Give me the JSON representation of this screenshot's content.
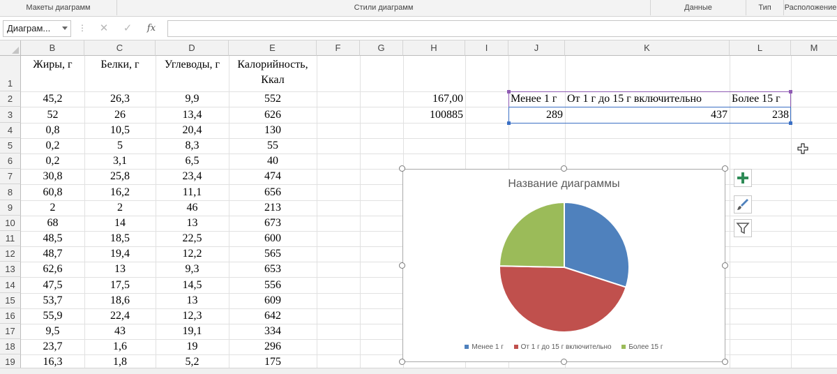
{
  "ribbon": {
    "groups": [
      "Макеты диаграмм",
      "Стили диаграмм",
      "Данные",
      "Тип",
      "Расположение"
    ]
  },
  "formula_bar": {
    "name_box": "Диаграм...",
    "cancel_icon": "close-icon",
    "enter_icon": "check-icon",
    "fx_label": "fx",
    "value": ""
  },
  "columns": [
    "B",
    "C",
    "D",
    "E",
    "F",
    "G",
    "H",
    "I",
    "J",
    "K",
    "L",
    "M"
  ],
  "rows": [
    "1",
    "2",
    "3",
    "4",
    "5",
    "6",
    "7",
    "8",
    "9",
    "10",
    "11",
    "12",
    "13",
    "14",
    "15",
    "16",
    "17",
    "18",
    "19"
  ],
  "table": {
    "headers": {
      "fat": "Жиры, г",
      "protein": "Белки, г",
      "carbs": "Углеводы, г",
      "calories_line1": "Калорийность,",
      "calories_line2": "Ккал"
    },
    "data": [
      [
        "45,2",
        "26,3",
        "9,9",
        "552"
      ],
      [
        "52",
        "26",
        "13,4",
        "626"
      ],
      [
        "0,8",
        "10,5",
        "20,4",
        "130"
      ],
      [
        "0,2",
        "5",
        "8,3",
        "55"
      ],
      [
        "0,2",
        "3,1",
        "6,5",
        "40"
      ],
      [
        "30,8",
        "25,8",
        "23,4",
        "474"
      ],
      [
        "60,8",
        "16,2",
        "11,1",
        "656"
      ],
      [
        "2",
        "2",
        "46",
        "213"
      ],
      [
        "68",
        "14",
        "13",
        "673"
      ],
      [
        "48,5",
        "18,5",
        "22,5",
        "600"
      ],
      [
        "48,7",
        "19,4",
        "12,2",
        "565"
      ],
      [
        "62,6",
        "13",
        "9,3",
        "653"
      ],
      [
        "47,5",
        "17,5",
        "14,5",
        "556"
      ],
      [
        "53,7",
        "18,6",
        "13",
        "609"
      ],
      [
        "55,9",
        "22,4",
        "12,3",
        "642"
      ],
      [
        "9,5",
        "43",
        "19,1",
        "334"
      ],
      [
        "23,7",
        "1,6",
        "19",
        "296"
      ],
      [
        "16,3",
        "1,8",
        "5,2",
        "175"
      ]
    ]
  },
  "h_values": {
    "h2": "167,00",
    "h3": "100885"
  },
  "summary": {
    "labels": [
      "Менее 1 г",
      "От 1 г до 15 г включительно",
      "Более 15 г"
    ],
    "counts": [
      "289",
      "437",
      "238"
    ]
  },
  "chart_data": {
    "type": "pie",
    "title": "Название диаграммы",
    "categories": [
      "Менее 1 г",
      "От 1 г до 15 г включительно",
      "Более 15 г"
    ],
    "values": [
      289,
      437,
      238
    ],
    "colors": [
      "#4f81bd",
      "#c0504d",
      "#9bbb59"
    ],
    "legend": "bottom"
  },
  "chart_tools": {
    "add_icon": "plus-icon",
    "style_icon": "brush-icon",
    "filter_icon": "filter-icon"
  },
  "colors": {
    "selection_purple": "#8f5bb3",
    "selection_blue": "#3a6fc4",
    "chart_plus": "#2e8b57"
  }
}
